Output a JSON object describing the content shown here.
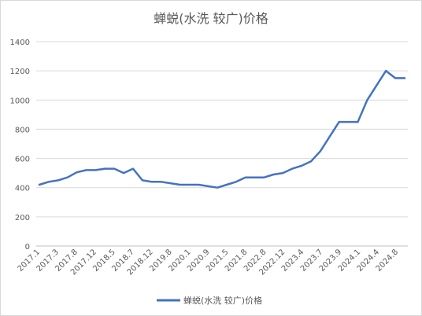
{
  "chart_data": {
    "type": "line",
    "title": "蝉蜕(水洗 较广)价格",
    "xlabel": "",
    "ylabel": "",
    "ylim": [
      0,
      1400
    ],
    "y_ticks": [
      0,
      200,
      400,
      600,
      800,
      1000,
      1200,
      1400
    ],
    "grid": true,
    "legend_position": "bottom",
    "color": "#4472c4",
    "x_tick_labels": [
      "2017.1",
      "2017.3",
      "2017.8",
      "2017.12",
      "2018.5",
      "2018.7",
      "2018.12",
      "2019.8",
      "2020.1",
      "2020.9",
      "2021.5",
      "2021.8",
      "2022.8",
      "2022.12",
      "2023.4",
      "2023.7",
      "2023.9",
      "2024.1",
      "2024.4",
      "2024.8"
    ],
    "series": [
      {
        "name": "蝉蜕(水洗 较广)价格",
        "values": [
          420,
          440,
          450,
          470,
          505,
          520,
          520,
          530,
          530,
          500,
          530,
          450,
          440,
          440,
          430,
          420,
          420,
          420,
          410,
          400,
          420,
          440,
          470,
          470,
          470,
          490,
          500,
          530,
          550,
          580,
          650,
          750,
          850,
          850,
          850,
          1000,
          1100,
          1200,
          1150,
          1150
        ]
      }
    ]
  }
}
